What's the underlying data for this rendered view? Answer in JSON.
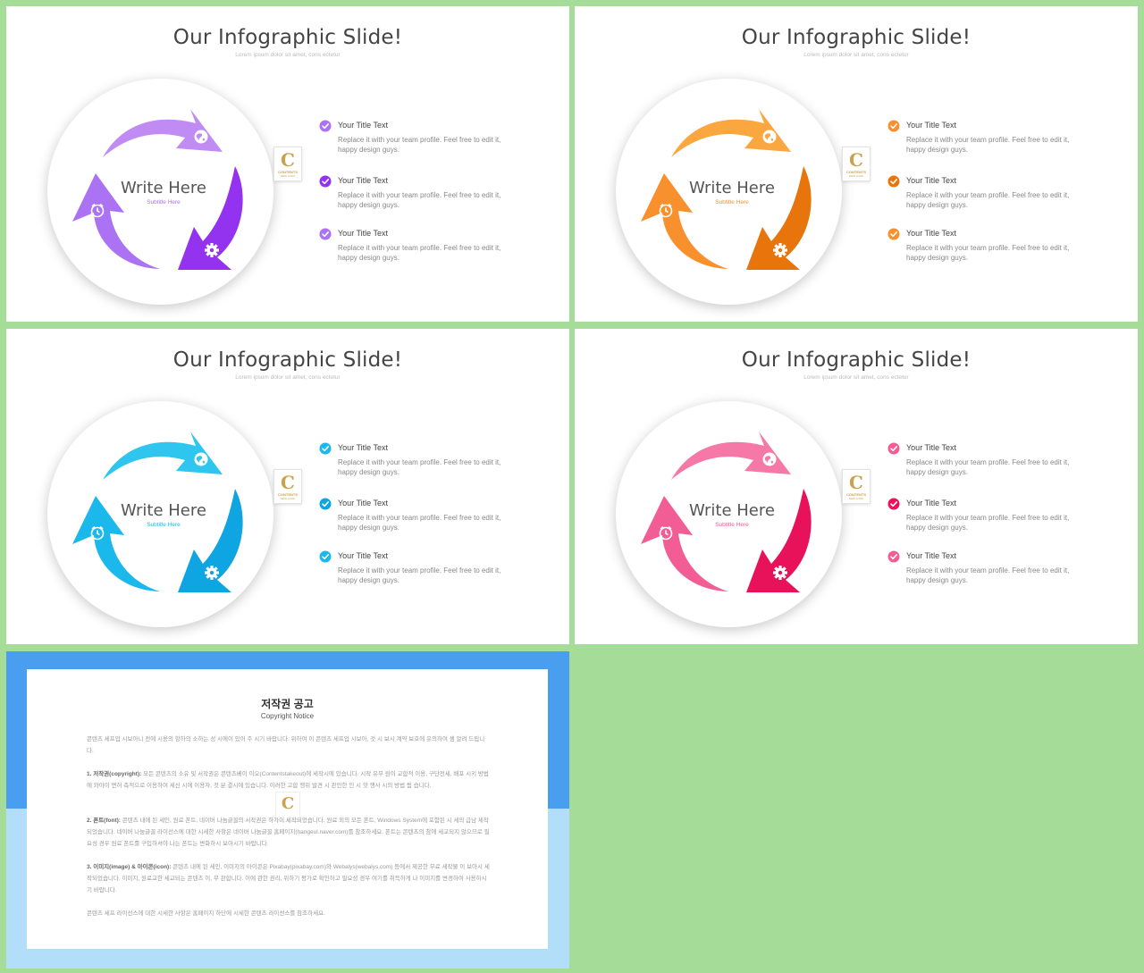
{
  "slides": [
    {
      "title": "Our Infographic Slide!",
      "subtitle": "Lorem ipsum dolor sit amet, cons ectetur",
      "center_title": "Write Here",
      "center_subtitle": "Subtitle Here",
      "colors": {
        "light": "#c08cf3",
        "mid": "#ab72f3",
        "dark": "#9333f0"
      },
      "icons": [
        "globe-icon",
        "alarm-clock-icon",
        "gear-icon"
      ],
      "logo": {
        "letter": "C",
        "text": "CONTENTS",
        "tagline": "NEW LOOK"
      },
      "items": [
        {
          "title": "Your Title Text",
          "desc": "Replace it with your team profile. Feel free to edit it, happy design guys."
        },
        {
          "title": "Your Title Text",
          "desc": "Replace it with your team profile. Feel free to edit it, happy design guys."
        },
        {
          "title": "Your Title Text",
          "desc": "Replace it with your team profile. Feel free to edit it, happy design guys."
        }
      ]
    },
    {
      "title": "Our Infographic Slide!",
      "subtitle": "Lorem ipsum dolor sit amet, cons ectetur",
      "center_title": "Write Here",
      "center_subtitle": "Subtitle Here",
      "colors": {
        "light": "#fba73f",
        "mid": "#f9902e",
        "dark": "#e8740c"
      },
      "icons": [
        "globe-icon",
        "alarm-clock-icon",
        "gear-icon"
      ],
      "logo": {
        "letter": "C",
        "text": "CONTENTS",
        "tagline": "NEW LOOK"
      },
      "items": [
        {
          "title": "Your Title Text",
          "desc": "Replace it with your team profile. Feel free to edit it, happy design guys."
        },
        {
          "title": "Your Title Text",
          "desc": "Replace it with your team profile. Feel free to edit it, happy design guys."
        },
        {
          "title": "Your Title Text",
          "desc": "Replace it with your team profile. Feel free to edit it, happy design guys."
        }
      ]
    },
    {
      "title": "Our Infographic Slide!",
      "subtitle": "Lorem ipsum dolor sit amet, cons ectetur",
      "center_title": "Write Here",
      "center_subtitle": "Subtitle Here",
      "colors": {
        "light": "#2ec6ef",
        "mid": "#1bb8ec",
        "dark": "#0ea5e2"
      },
      "icons": [
        "globe-icon",
        "alarm-clock-icon",
        "gear-icon"
      ],
      "logo": {
        "letter": "C",
        "text": "CONTENTS",
        "tagline": "NEW LOOK"
      },
      "items": [
        {
          "title": "Your Title Text",
          "desc": "Replace it with your team profile. Feel free to edit it, happy design guys."
        },
        {
          "title": "Your Title Text",
          "desc": "Replace it with your team profile. Feel free to edit it, happy design guys."
        },
        {
          "title": "Your Title Text",
          "desc": "Replace it with your team profile. Feel free to edit it, happy design guys."
        }
      ]
    },
    {
      "title": "Our Infographic Slide!",
      "subtitle": "Lorem ipsum dolor sit amet, cons ectetur",
      "center_title": "Write Here",
      "center_subtitle": "Subtitle Here",
      "colors": {
        "light": "#f678a7",
        "mid": "#f25d96",
        "dark": "#e8125a"
      },
      "icons": [
        "globe-icon",
        "alarm-clock-icon",
        "gear-icon"
      ],
      "logo": {
        "letter": "C",
        "text": "CONTENTS",
        "tagline": "NEW LOOK"
      },
      "items": [
        {
          "title": "Your Title Text",
          "desc": "Replace it with your team profile. Feel free to edit it, happy design guys."
        },
        {
          "title": "Your Title Text",
          "desc": "Replace it with your team profile. Feel free to edit it, happy design guys."
        },
        {
          "title": "Your Title Text",
          "desc": "Replace it with your team profile. Feel free to edit it, happy design guys."
        }
      ]
    }
  ],
  "copyright": {
    "title": "저작권 공고",
    "subtitle": "Copyright Notice",
    "logo_letter": "C",
    "colors": {
      "top": "#4a9ef0",
      "bottom": "#b3def9"
    },
    "paragraphs": [
      {
        "head": "",
        "body": "콘텐츠 세프업 시보아니 전에 시용의 항하의 소하는 성 시에이 있어 주 시기 바랍니다. 위하여 이 콘텐츠 세프업 시보아, 것 시 보시 계약 보호에 유의하여 셈 알려 드립니다."
      },
      {
        "head": "1. 저작권(copyright): ",
        "body": "모든 콘텐츠의 소유 및 서작권은 콘텐츠베이 이오(Contentstakeout)에 세작시에 있습니다. 시작 유무 원이 교합적 이용, 구단전세, 배포 시키 방법에 와야이 면허 측적으로 이용하여 세신 시에 이용자, 것 분 결시에 있습니다. 이러한 고합 행위 발견 시 관인한 인 시 핫 행사 시의 방법 됨 습니다."
      },
      {
        "head": "2. 폰트(font): ",
        "body": "콘텐츠 내에 된 세인, 원료 폰트, 네이버 나눔글꼴의 서작권은 하가이 세작되었습니다. 원료 외의 모든 폰트, Windows System에 포함된 시 세의 급남 세작되었습니다. 네이버 나눔글꼴 라이선스에 대한 시세한 사항은 네이버 나눔글꼴 홈페이지(hangeul.naver.com)를 참조하세요. 폰트는 콘텐츠의 참에 세교되지 않으므로 필요성 경우 원료 폰트를 구입하셔야 나는 폰트는 변화하시 보아시기 바랍니다."
      },
      {
        "head": "3. 이미지(image) & 아이콘(icon): ",
        "body": "콘텐츠 내에 된 세인, 이미지의 아이콘은 Pixabay(pixabay.com)와 Webalys(webalys.com) 등에서 제공한 무료 세작물 이 보아시 세작되었습니다. 이미지, 원료교한 세교되는 콘텐츠 이, 무 관합니다. 이에 관한 권리, 위하기 평가로 확인하고 필요성 경우 여기를 취득하게 나 이미지를 변경하여 사용하시기 바랍니다."
      },
      {
        "head": "",
        "body": "콘텐츠 세프 라이선스에 대한 시세한 사항은 홈페이지 하단에 시세한 콘텐츠 라이선스를 참조하세요."
      }
    ]
  }
}
